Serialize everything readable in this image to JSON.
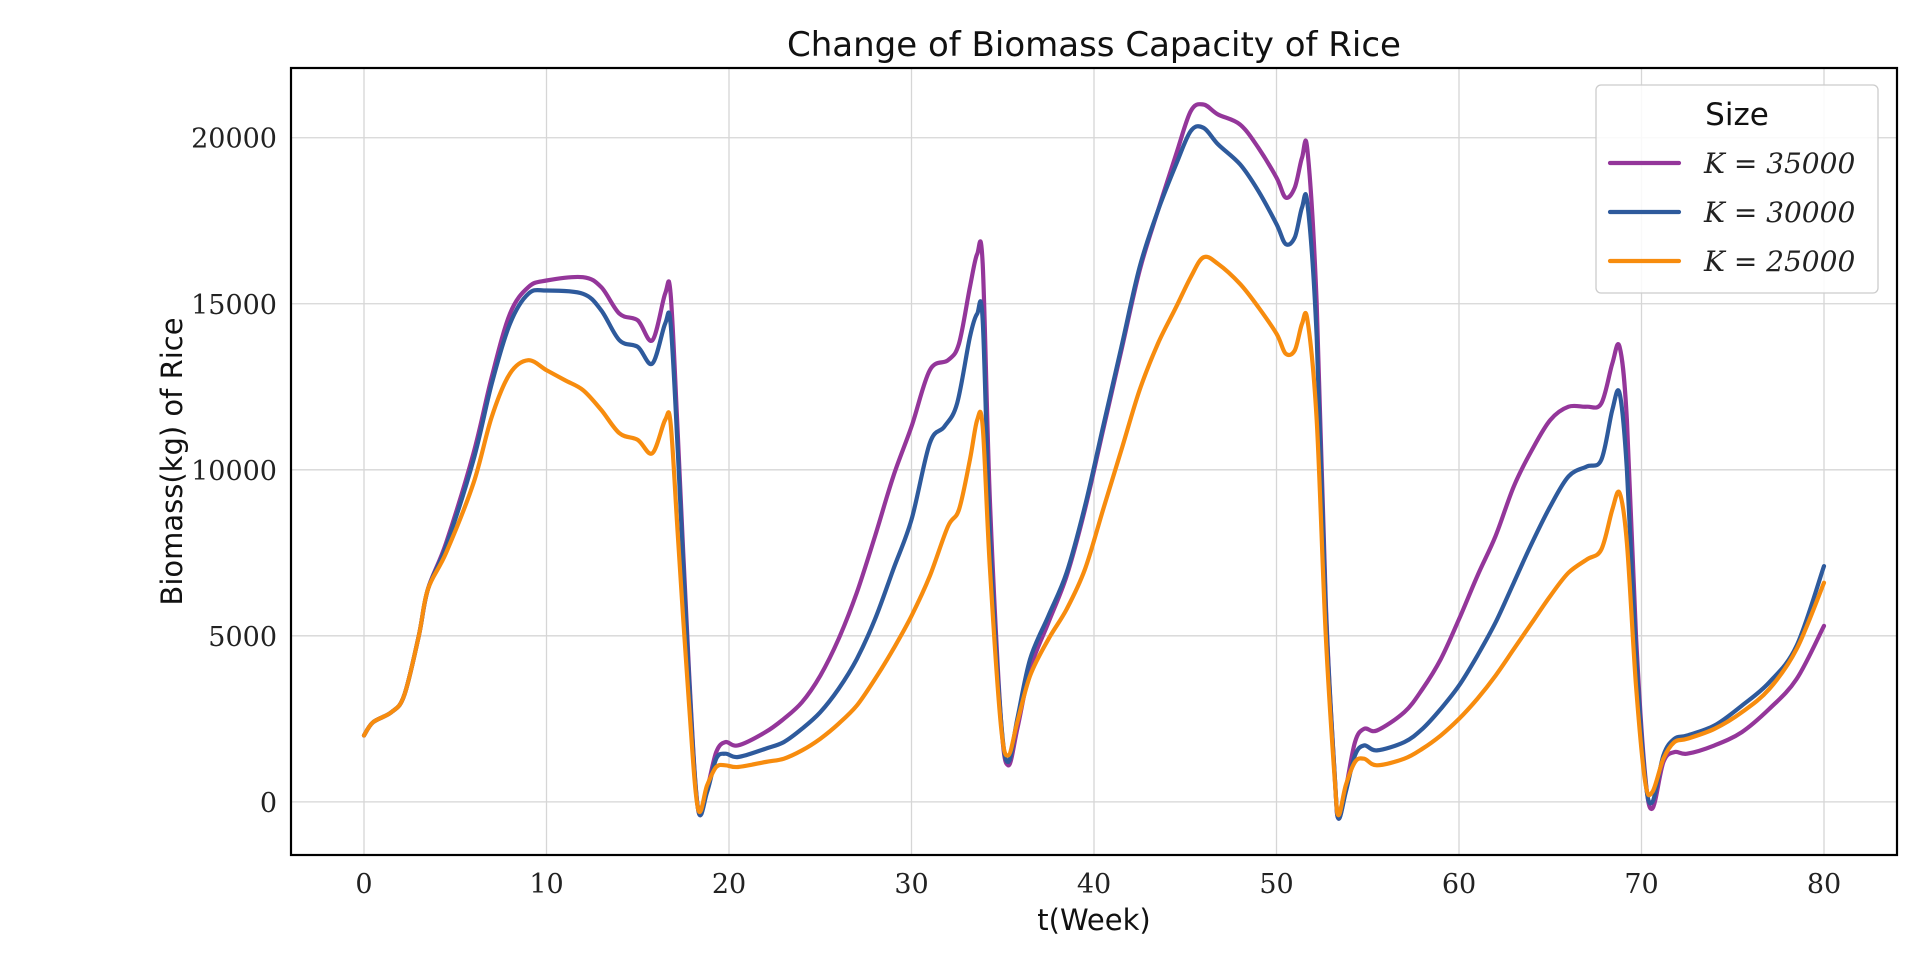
{
  "chart_data": {
    "type": "line",
    "title": "Change of Biomass Capacity of Rice",
    "xlabel": "t(Week)",
    "ylabel": "Biomass(kg) of Rice",
    "xlim": [
      -4,
      84
    ],
    "ylim": [
      -1600,
      22100
    ],
    "xticks": [
      0,
      10,
      20,
      30,
      40,
      50,
      60,
      70,
      80
    ],
    "yticks": [
      0,
      5000,
      10000,
      15000,
      20000
    ],
    "grid": true,
    "legend": {
      "title": "Size",
      "placement": "top-right"
    },
    "series": [
      {
        "name": "K = 35000",
        "color": "#94369a",
        "points": [
          [
            0,
            2000
          ],
          [
            0.5,
            2400
          ],
          [
            1.5,
            2700
          ],
          [
            2.2,
            3200
          ],
          [
            3,
            5000
          ],
          [
            3.5,
            6400
          ],
          [
            4.5,
            7800
          ],
          [
            6,
            10500
          ],
          [
            7,
            12800
          ],
          [
            8,
            14700
          ],
          [
            9,
            15500
          ],
          [
            10,
            15700
          ],
          [
            12,
            15800
          ],
          [
            13,
            15500
          ],
          [
            14,
            14700
          ],
          [
            15,
            14500
          ],
          [
            15.8,
            13900
          ],
          [
            16.5,
            15300
          ],
          [
            16.8,
            15300
          ],
          [
            17.2,
            11000
          ],
          [
            17.8,
            4000
          ],
          [
            18.3,
            -200
          ],
          [
            18.8,
            400
          ],
          [
            19.3,
            1500
          ],
          [
            19.8,
            1800
          ],
          [
            20.5,
            1700
          ],
          [
            22,
            2100
          ],
          [
            23,
            2500
          ],
          [
            24,
            3000
          ],
          [
            25,
            3800
          ],
          [
            26,
            4900
          ],
          [
            27,
            6300
          ],
          [
            28,
            8000
          ],
          [
            29,
            9800
          ],
          [
            30,
            11300
          ],
          [
            31,
            13000
          ],
          [
            32,
            13300
          ],
          [
            32.6,
            13800
          ],
          [
            33.2,
            15500
          ],
          [
            33.6,
            16500
          ],
          [
            33.9,
            16200
          ],
          [
            34.3,
            9000
          ],
          [
            34.9,
            2500
          ],
          [
            35.3,
            1100
          ],
          [
            35.8,
            2200
          ],
          [
            36.5,
            4000
          ],
          [
            37.5,
            5400
          ],
          [
            38.5,
            6800
          ],
          [
            39.5,
            8800
          ],
          [
            40.5,
            11200
          ],
          [
            41.5,
            13600
          ],
          [
            42.5,
            16000
          ],
          [
            43.5,
            17800
          ],
          [
            44.5,
            19500
          ],
          [
            45.3,
            20800
          ],
          [
            46,
            21000
          ],
          [
            46.8,
            20700
          ],
          [
            48,
            20400
          ],
          [
            49,
            19700
          ],
          [
            50,
            18800
          ],
          [
            50.5,
            18200
          ],
          [
            51,
            18500
          ],
          [
            51.4,
            19400
          ],
          [
            51.7,
            19600
          ],
          [
            52.2,
            15000
          ],
          [
            52.7,
            6000
          ],
          [
            53.2,
            700
          ],
          [
            53.4,
            -500
          ],
          [
            53.8,
            400
          ],
          [
            54.3,
            1800
          ],
          [
            54.8,
            2200
          ],
          [
            55.5,
            2150
          ],
          [
            57,
            2700
          ],
          [
            58,
            3400
          ],
          [
            59,
            4300
          ],
          [
            60,
            5500
          ],
          [
            61,
            6800
          ],
          [
            62,
            8000
          ],
          [
            63,
            9500
          ],
          [
            64,
            10600
          ],
          [
            65,
            11500
          ],
          [
            66,
            11900
          ],
          [
            67,
            11900
          ],
          [
            67.8,
            12000
          ],
          [
            68.4,
            13200
          ],
          [
            68.8,
            13700
          ],
          [
            69.2,
            11500
          ],
          [
            69.7,
            5000
          ],
          [
            70.2,
            800
          ],
          [
            70.6,
            -200
          ],
          [
            71.2,
            1200
          ],
          [
            71.8,
            1500
          ],
          [
            72.5,
            1450
          ],
          [
            74,
            1700
          ],
          [
            75.5,
            2100
          ],
          [
            77,
            2800
          ],
          [
            78.5,
            3700
          ],
          [
            80,
            5300
          ]
        ]
      },
      {
        "name": "K = 30000",
        "color": "#2e5a9c",
        "points": [
          [
            0,
            2000
          ],
          [
            0.5,
            2400
          ],
          [
            1.5,
            2700
          ],
          [
            2.2,
            3200
          ],
          [
            3,
            5000
          ],
          [
            3.5,
            6400
          ],
          [
            4.5,
            7700
          ],
          [
            6,
            10300
          ],
          [
            7,
            12600
          ],
          [
            8,
            14400
          ],
          [
            9,
            15300
          ],
          [
            10,
            15400
          ],
          [
            12,
            15300
          ],
          [
            13,
            14800
          ],
          [
            14,
            13900
          ],
          [
            15,
            13700
          ],
          [
            15.8,
            13200
          ],
          [
            16.5,
            14400
          ],
          [
            16.8,
            14400
          ],
          [
            17.2,
            10500
          ],
          [
            17.8,
            3800
          ],
          [
            18.3,
            -200
          ],
          [
            18.8,
            300
          ],
          [
            19.3,
            1300
          ],
          [
            19.8,
            1450
          ],
          [
            20.5,
            1350
          ],
          [
            22,
            1600
          ],
          [
            23,
            1800
          ],
          [
            24,
            2200
          ],
          [
            25,
            2700
          ],
          [
            26,
            3400
          ],
          [
            27,
            4300
          ],
          [
            28,
            5500
          ],
          [
            29,
            7000
          ],
          [
            30,
            8500
          ],
          [
            31,
            10800
          ],
          [
            31.8,
            11300
          ],
          [
            32.5,
            12000
          ],
          [
            33.2,
            14000
          ],
          [
            33.6,
            14700
          ],
          [
            33.9,
            14500
          ],
          [
            34.3,
            8000
          ],
          [
            34.9,
            2500
          ],
          [
            35.3,
            1200
          ],
          [
            35.8,
            2500
          ],
          [
            36.5,
            4300
          ],
          [
            37.5,
            5600
          ],
          [
            38.5,
            6900
          ],
          [
            39.5,
            8900
          ],
          [
            40.5,
            11300
          ],
          [
            41.5,
            13700
          ],
          [
            42.5,
            16100
          ],
          [
            43.5,
            17800
          ],
          [
            44.5,
            19200
          ],
          [
            45.3,
            20200
          ],
          [
            46,
            20300
          ],
          [
            46.8,
            19800
          ],
          [
            48,
            19200
          ],
          [
            49,
            18400
          ],
          [
            50,
            17400
          ],
          [
            50.5,
            16800
          ],
          [
            51,
            17000
          ],
          [
            51.4,
            17900
          ],
          [
            51.7,
            18000
          ],
          [
            52.2,
            14000
          ],
          [
            52.7,
            5800
          ],
          [
            53.2,
            700
          ],
          [
            53.4,
            -500
          ],
          [
            53.8,
            300
          ],
          [
            54.3,
            1400
          ],
          [
            54.8,
            1700
          ],
          [
            55.5,
            1550
          ],
          [
            57,
            1800
          ],
          [
            58,
            2200
          ],
          [
            59,
            2800
          ],
          [
            60,
            3500
          ],
          [
            61,
            4400
          ],
          [
            62,
            5400
          ],
          [
            63,
            6600
          ],
          [
            64,
            7800
          ],
          [
            65,
            8900
          ],
          [
            66,
            9800
          ],
          [
            67,
            10100
          ],
          [
            67.8,
            10300
          ],
          [
            68.4,
            11800
          ],
          [
            68.8,
            12300
          ],
          [
            69.2,
            10000
          ],
          [
            69.7,
            4500
          ],
          [
            70.2,
            700
          ],
          [
            70.6,
            0
          ],
          [
            71.2,
            1400
          ],
          [
            71.8,
            1900
          ],
          [
            72.5,
            2000
          ],
          [
            74,
            2300
          ],
          [
            75.5,
            2900
          ],
          [
            77,
            3600
          ],
          [
            78.5,
            4700
          ],
          [
            80,
            7100
          ]
        ]
      },
      {
        "name": "K = 25000",
        "color": "#f78c0e",
        "points": [
          [
            0,
            2000
          ],
          [
            0.5,
            2400
          ],
          [
            1.5,
            2700
          ],
          [
            2.2,
            3200
          ],
          [
            3,
            5000
          ],
          [
            3.5,
            6400
          ],
          [
            4.5,
            7500
          ],
          [
            6,
            9600
          ],
          [
            7,
            11600
          ],
          [
            8,
            12900
          ],
          [
            9,
            13300
          ],
          [
            10,
            13000
          ],
          [
            11,
            12700
          ],
          [
            12,
            12400
          ],
          [
            13,
            11800
          ],
          [
            14,
            11100
          ],
          [
            15,
            10900
          ],
          [
            15.8,
            10500
          ],
          [
            16.5,
            11500
          ],
          [
            16.8,
            11400
          ],
          [
            17.2,
            8000
          ],
          [
            17.8,
            3000
          ],
          [
            18.3,
            -200
          ],
          [
            18.8,
            500
          ],
          [
            19.3,
            1050
          ],
          [
            19.8,
            1100
          ],
          [
            20.5,
            1050
          ],
          [
            22,
            1200
          ],
          [
            23,
            1300
          ],
          [
            24,
            1550
          ],
          [
            25,
            1900
          ],
          [
            26,
            2350
          ],
          [
            27,
            2900
          ],
          [
            28,
            3700
          ],
          [
            29,
            4600
          ],
          [
            30,
            5600
          ],
          [
            31,
            6800
          ],
          [
            32,
            8300
          ],
          [
            32.6,
            8800
          ],
          [
            33.2,
            10300
          ],
          [
            33.6,
            11500
          ],
          [
            33.9,
            11300
          ],
          [
            34.3,
            7000
          ],
          [
            34.9,
            2300
          ],
          [
            35.3,
            1400
          ],
          [
            35.8,
            2400
          ],
          [
            36.5,
            3800
          ],
          [
            37.5,
            4900
          ],
          [
            38.5,
            5800
          ],
          [
            39.5,
            7000
          ],
          [
            40.5,
            8800
          ],
          [
            41.5,
            10600
          ],
          [
            42.5,
            12400
          ],
          [
            43.5,
            13800
          ],
          [
            44.5,
            14900
          ],
          [
            45.3,
            15800
          ],
          [
            46,
            16400
          ],
          [
            46.8,
            16200
          ],
          [
            48,
            15600
          ],
          [
            49,
            14900
          ],
          [
            50,
            14100
          ],
          [
            50.5,
            13500
          ],
          [
            51,
            13600
          ],
          [
            51.4,
            14400
          ],
          [
            51.7,
            14500
          ],
          [
            52.2,
            11500
          ],
          [
            52.7,
            5000
          ],
          [
            53.2,
            600
          ],
          [
            53.4,
            -400
          ],
          [
            53.8,
            500
          ],
          [
            54.3,
            1200
          ],
          [
            54.8,
            1300
          ],
          [
            55.5,
            1100
          ],
          [
            57,
            1300
          ],
          [
            58,
            1600
          ],
          [
            59,
            2000
          ],
          [
            60,
            2500
          ],
          [
            61,
            3100
          ],
          [
            62,
            3800
          ],
          [
            63,
            4600
          ],
          [
            64,
            5400
          ],
          [
            65,
            6200
          ],
          [
            66,
            6900
          ],
          [
            67,
            7300
          ],
          [
            67.8,
            7600
          ],
          [
            68.4,
            8800
          ],
          [
            68.8,
            9300
          ],
          [
            69.2,
            7800
          ],
          [
            69.7,
            3500
          ],
          [
            70.2,
            600
          ],
          [
            70.6,
            300
          ],
          [
            71.2,
            1300
          ],
          [
            71.8,
            1800
          ],
          [
            72.5,
            1900
          ],
          [
            74,
            2200
          ],
          [
            75.5,
            2700
          ],
          [
            77,
            3400
          ],
          [
            78.5,
            4600
          ],
          [
            80,
            6600
          ]
        ]
      }
    ]
  }
}
